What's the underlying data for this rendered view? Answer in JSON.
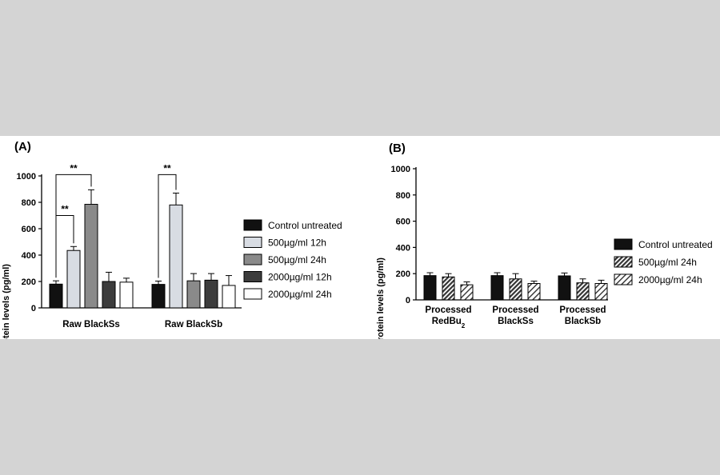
{
  "chart_data": [
    {
      "type": "bar",
      "panel_label": "(A)",
      "ylabel": "APC protein levels (pg/ml)",
      "ylim": [
        0,
        1000
      ],
      "yticks": [
        "0",
        "200",
        "400",
        "600",
        "800",
        "1000"
      ],
      "categories": [
        "Raw BlackSs",
        "Raw BlackSb"
      ],
      "series": [
        {
          "name": "Control untreated",
          "fill": "#111111",
          "pattern": "solid",
          "values": [
            180,
            178
          ],
          "errors": [
            25,
            25
          ]
        },
        {
          "name": "500µg/ml 12h",
          "fill": "#d8dce3",
          "pattern": "solid",
          "values": [
            435,
            780
          ],
          "errors": [
            30,
            90
          ]
        },
        {
          "name": "500µg/ml 24h",
          "fill": "#8a8a8a",
          "pattern": "solid",
          "values": [
            785,
            205
          ],
          "errors": [
            110,
            55
          ]
        },
        {
          "name": "2000µg/ml 12h",
          "fill": "#3c3c3c",
          "pattern": "solid",
          "values": [
            200,
            210
          ],
          "errors": [
            70,
            50
          ]
        },
        {
          "name": "2000µg/ml 24h",
          "fill": "#ffffff",
          "pattern": "solid",
          "values": [
            195,
            170
          ],
          "errors": [
            30,
            75
          ]
        }
      ],
      "significance": [
        {
          "label": "**",
          "category": 0,
          "from": 0,
          "to": 1,
          "level": 700
        },
        {
          "label": "**",
          "category": 0,
          "from": 0,
          "to": 2,
          "level": 1010
        },
        {
          "label": "**",
          "category": 1,
          "from": 0,
          "to": 1,
          "level": 1010
        }
      ],
      "legend_position": "right"
    },
    {
      "type": "bar",
      "panel_label": "(B)",
      "ylabel": "APC protein levels (pg/ml)",
      "ylim": [
        0,
        1000
      ],
      "yticks": [
        "0",
        "200",
        "400",
        "600",
        "800",
        "1000"
      ],
      "categories": [
        [
          "Processed",
          "RedBu",
          "2"
        ],
        [
          "Processed",
          "BlackSs",
          ""
        ],
        [
          "Processed",
          "BlackSb",
          ""
        ]
      ],
      "series": [
        {
          "name": "Control untreated",
          "fill": "#111111",
          "pattern": "solid",
          "values": [
            185,
            185,
            183
          ],
          "errors": [
            22,
            22,
            22
          ]
        },
        {
          "name": "500µg/ml 24h",
          "fill": "#555555",
          "pattern": "dense-hatch",
          "values": [
            175,
            160,
            130
          ],
          "errors": [
            25,
            40,
            30
          ]
        },
        {
          "name": "2000µg/ml 24h",
          "fill": "#ffffff",
          "pattern": "sparse-hatch",
          "values": [
            115,
            125,
            125
          ],
          "errors": [
            22,
            18,
            25
          ]
        }
      ],
      "legend_position": "right"
    }
  ]
}
